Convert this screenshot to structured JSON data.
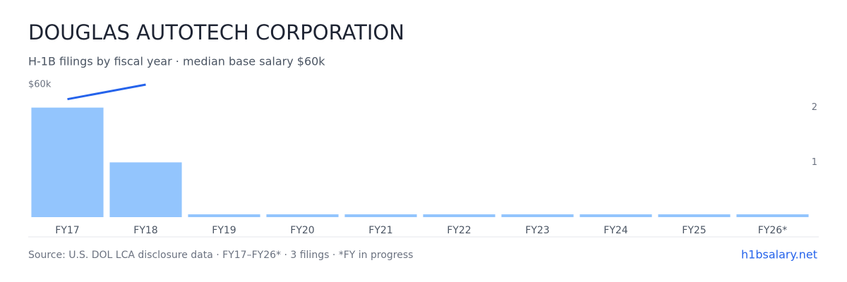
{
  "chart_data": {
    "type": "bar",
    "title": "DOUGLAS AUTOTECH CORPORATION",
    "subtitle": "H-1B filings by fiscal year · median base salary $60k",
    "categories": [
      "FY17",
      "FY18",
      "FY19",
      "FY20",
      "FY21",
      "FY22",
      "FY23",
      "FY24",
      "FY25",
      "FY26*"
    ],
    "series": [
      {
        "name": "H-1B filings",
        "type": "bar",
        "axis": "y2",
        "color": "#93c5fd",
        "values": [
          2,
          1,
          0,
          0,
          0,
          0,
          0,
          0,
          0,
          0
        ]
      },
      {
        "name": "Median base salary",
        "type": "line",
        "axis": "y",
        "color": "#2563eb",
        "values": [
          57800,
          60000,
          null,
          null,
          null,
          null,
          null,
          null,
          null,
          null
        ]
      }
    ],
    "ylim": [
      40000,
      60000
    ],
    "yticks": [
      {
        "value": 60000,
        "label": "$60k"
      }
    ],
    "y2lim": [
      0,
      2.42
    ],
    "y2ticks": [
      1,
      2
    ],
    "source": "Source: U.S. DOL LCA disclosure data · FY17–FY26* · 3 filings · *FY in progress",
    "site": "h1bsalary.net"
  }
}
